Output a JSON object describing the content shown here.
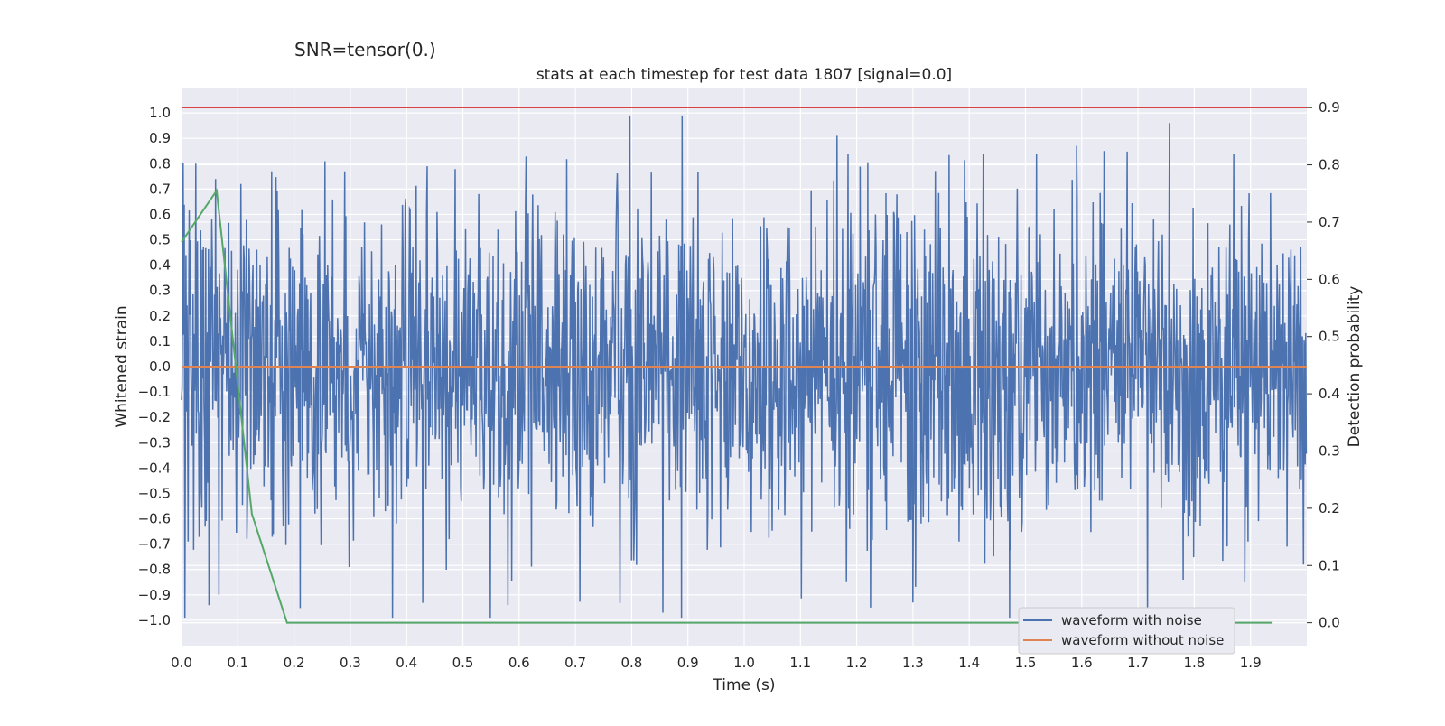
{
  "suptitle": "SNR=tensor(0.)",
  "chart_data": {
    "type": "line",
    "title": "stats at each timestep for test data 1807 [signal=0.0]",
    "xlabel": "Time (s)",
    "ylabel": "Whitened strain",
    "y2label": "Detection probability",
    "xlim": [
      0.0,
      2.0
    ],
    "ylim": [
      -1.1,
      1.1
    ],
    "y2lim": [
      -0.04,
      0.935
    ],
    "xticks": [
      "0.0",
      "0.1",
      "0.2",
      "0.3",
      "0.4",
      "0.5",
      "0.6",
      "0.7",
      "0.8",
      "0.9",
      "1.0",
      "1.1",
      "1.2",
      "1.3",
      "1.4",
      "1.5",
      "1.6",
      "1.7",
      "1.8",
      "1.9"
    ],
    "yticks": [
      "1.0",
      "0.9",
      "0.8",
      "0.7",
      "0.6",
      "0.5",
      "0.4",
      "0.3",
      "0.2",
      "0.1",
      "0.0",
      "−0.1",
      "−0.2",
      "−0.3",
      "−0.4",
      "−0.5",
      "−0.6",
      "−0.7",
      "−0.8",
      "−0.9",
      "−1.0"
    ],
    "y2ticks": [
      "0.9",
      "0.8",
      "0.7",
      "0.6",
      "0.5",
      "0.4",
      "0.3",
      "0.2",
      "0.1",
      "0.0"
    ],
    "grid": true,
    "legend_position": "lower-right",
    "threshold_line": {
      "axis": "y2",
      "value": 0.9,
      "color": "#d62728"
    },
    "series": [
      {
        "name": "waveform with noise",
        "axis": "y",
        "color": "#4c72b0",
        "sample_count": 2048,
        "x_step": 0.0009765625,
        "y_range": [
          -0.99,
          0.99
        ],
        "peaks": [
          [
            0.025,
            0.8
          ],
          [
            0.105,
            0.72
          ],
          [
            0.16,
            0.77
          ],
          [
            0.255,
            0.81
          ],
          [
            0.29,
            0.77
          ],
          [
            0.89,
            0.99
          ],
          [
            1.165,
            0.91
          ],
          [
            1.185,
            0.84
          ],
          [
            1.52,
            0.84
          ],
          [
            1.64,
            0.85
          ],
          [
            1.87,
            0.84
          ]
        ],
        "troughs": [
          [
            0.375,
            -0.99
          ],
          [
            0.58,
            -0.94
          ],
          [
            0.855,
            -0.97
          ],
          [
            1.225,
            -0.95
          ],
          [
            1.3,
            -0.93
          ],
          [
            1.78,
            -0.84
          ]
        ]
      },
      {
        "name": "waveform without noise",
        "axis": "y",
        "color": "#dd8452",
        "x": [
          0.0,
          2.0
        ],
        "y": [
          0.0,
          0.0
        ]
      },
      {
        "name": "",
        "axis": "y2",
        "color": "#55a868",
        "x": [
          0.0,
          0.0625,
          0.125,
          0.1875,
          0.25,
          0.5,
          1.0,
          1.5,
          1.9375
        ],
        "y": [
          0.665,
          0.755,
          0.19,
          0.0,
          0.0,
          0.0,
          0.0,
          0.0,
          0.0
        ]
      }
    ]
  }
}
